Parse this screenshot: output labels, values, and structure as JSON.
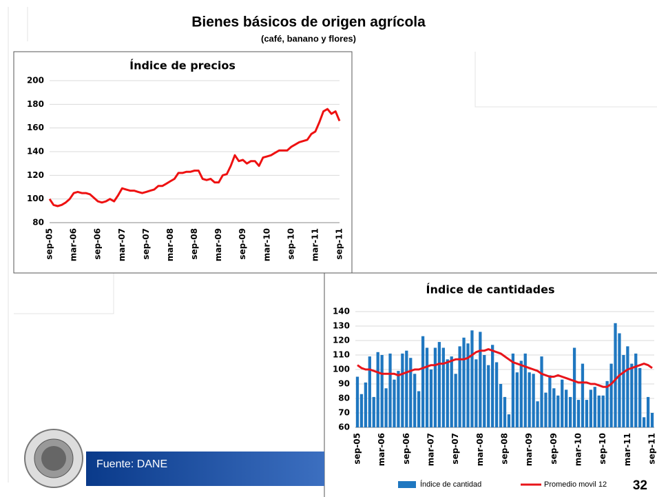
{
  "title": "Bienes básicos de origen agrícola",
  "subtitle": "(café, banano y flores)",
  "source": "Fuente: DANE",
  "page_number": "32",
  "chart_data": [
    {
      "type": "line",
      "title": "Índice de precios",
      "categories": [
        "sep-05",
        null,
        null,
        null,
        null,
        null,
        "mar-06",
        null,
        null,
        null,
        null,
        null,
        "sep-06",
        null,
        null,
        null,
        null,
        null,
        "mar-07",
        null,
        null,
        null,
        null,
        null,
        "sep-07",
        null,
        null,
        null,
        null,
        null,
        "mar-08",
        null,
        null,
        null,
        null,
        null,
        "sep-08",
        null,
        null,
        null,
        null,
        null,
        "mar-09",
        null,
        null,
        null,
        null,
        null,
        "sep-09",
        null,
        null,
        null,
        null,
        null,
        "mar-10",
        null,
        null,
        null,
        null,
        null,
        "sep-10",
        null,
        null,
        null,
        null,
        null,
        "mar-11",
        null,
        null,
        null,
        null,
        null,
        "sep-11"
      ],
      "values": [
        100,
        95,
        94,
        95,
        97,
        100,
        105,
        106,
        105,
        105,
        104,
        101,
        98,
        97,
        98,
        100,
        98,
        103,
        109,
        108,
        107,
        107,
        106,
        105,
        106,
        107,
        108,
        111,
        111,
        113,
        115,
        117,
        122,
        122,
        123,
        123,
        124,
        124,
        117,
        116,
        117,
        114,
        114,
        120,
        121,
        128,
        137,
        132,
        133,
        130,
        132,
        132,
        128,
        135,
        136,
        137,
        139,
        141,
        141,
        141,
        144,
        146,
        148,
        149,
        150,
        155,
        157,
        165,
        174,
        176,
        172,
        174,
        166
      ],
      "color": "#ee1111",
      "ylim": [
        80,
        200
      ],
      "yticks": [
        80,
        100,
        120,
        140,
        160,
        180,
        200
      ],
      "grid": true
    },
    {
      "type": "bar_line",
      "title": "Índice de cantidades",
      "categories": [
        "sep-05",
        null,
        null,
        null,
        null,
        null,
        "mar-06",
        null,
        null,
        null,
        null,
        null,
        "sep-06",
        null,
        null,
        null,
        null,
        null,
        "mar-07",
        null,
        null,
        null,
        null,
        null,
        "sep-07",
        null,
        null,
        null,
        null,
        null,
        "mar-08",
        null,
        null,
        null,
        null,
        null,
        "sep-08",
        null,
        null,
        null,
        null,
        null,
        "mar-09",
        null,
        null,
        null,
        null,
        null,
        "sep-09",
        null,
        null,
        null,
        null,
        null,
        "mar-10",
        null,
        null,
        null,
        null,
        null,
        "sep-10",
        null,
        null,
        null,
        null,
        null,
        "mar-11",
        null,
        null,
        null,
        null,
        null,
        "sep-11"
      ],
      "series": [
        {
          "name": "Índice de cantidad",
          "color": "#1f77c0",
          "type": "bar",
          "values": [
            95,
            83,
            91,
            109,
            81,
            112,
            110,
            87,
            111,
            93,
            99,
            111,
            113,
            108,
            97,
            85,
            123,
            115,
            100,
            115,
            119,
            115,
            107,
            109,
            97,
            116,
            122,
            118,
            127,
            107,
            126,
            110,
            103,
            117,
            105,
            90,
            81,
            69,
            111,
            98,
            106,
            111,
            98,
            97,
            78,
            109,
            84,
            96,
            87,
            82,
            93,
            86,
            81,
            115,
            79,
            104,
            79,
            86,
            88,
            82,
            82,
            92,
            104,
            132,
            125,
            110,
            116,
            104,
            111,
            101,
            67,
            81,
            70
          ]
        },
        {
          "name": "Promedio movil 12",
          "color": "#e8141a",
          "type": "line",
          "values": [
            103,
            101,
            100,
            100,
            99,
            98,
            97,
            97,
            97,
            97,
            96,
            97,
            98,
            99,
            100,
            100,
            101,
            102,
            103,
            103,
            104,
            104,
            105,
            106,
            107,
            107,
            107,
            108,
            110,
            112,
            113,
            113,
            114,
            113,
            112,
            111,
            109,
            107,
            105,
            104,
            103,
            102,
            101,
            100,
            99,
            97,
            96,
            95,
            95,
            96,
            95,
            94,
            93,
            92,
            91,
            91,
            91,
            90,
            90,
            89,
            88,
            88,
            90,
            93,
            96,
            98,
            100,
            101,
            102,
            103,
            104,
            103,
            101
          ]
        }
      ],
      "ylim": [
        60,
        140
      ],
      "yticks": [
        60,
        70,
        80,
        90,
        100,
        110,
        120,
        130,
        140
      ],
      "grid": true,
      "legend": "bottom"
    }
  ]
}
